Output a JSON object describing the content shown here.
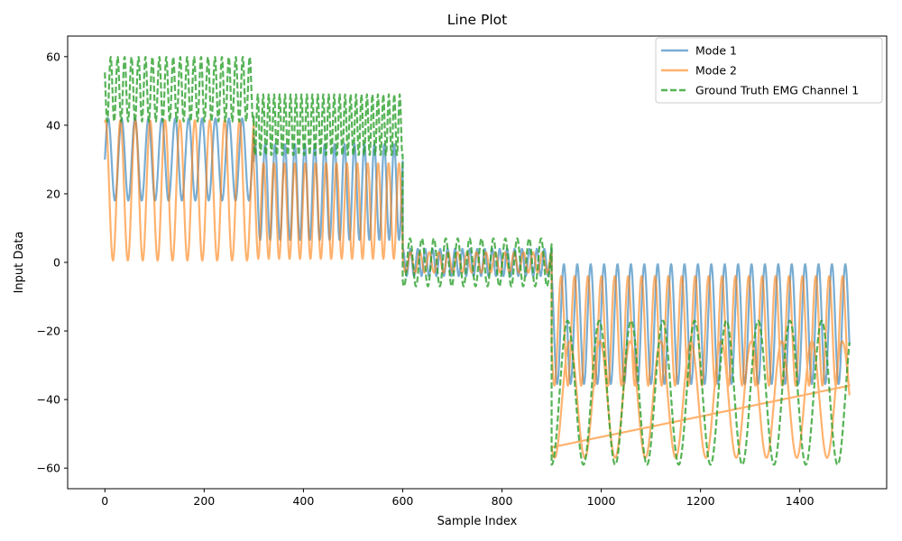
{
  "chart_data": {
    "type": "line",
    "title": "Line Plot",
    "xlabel": "Sample Index",
    "ylabel": "Input Data",
    "xlim": [
      -75,
      1575
    ],
    "ylim": [
      -66,
      66
    ],
    "xticks": [
      0,
      200,
      400,
      600,
      800,
      1000,
      1200,
      1400
    ],
    "yticks": [
      60,
      40,
      20,
      0,
      -20,
      -40,
      -60
    ],
    "ytick_labels": [
      "60",
      "40",
      "20",
      "0",
      "−20",
      "−40",
      "−60"
    ],
    "grid": false,
    "legend_position": "top-right",
    "series": [
      {
        "name": "Mode 1",
        "color": "#1f77b4",
        "style": "solid",
        "segments": [
          {
            "x_start": 0,
            "x_end": 300,
            "center": 30,
            "amp": 12,
            "period": 27
          },
          {
            "x_start": 300,
            "x_end": 600,
            "center": 20.5,
            "amp": 14,
            "period": 20
          },
          {
            "x_start": 600,
            "x_end": 900,
            "center": 0,
            "amp": 4,
            "period": 15
          },
          {
            "x_start": 900,
            "x_end": 1500,
            "center": -18,
            "amp": 17.5,
            "period": 27
          }
        ]
      },
      {
        "name": "Mode 2",
        "color": "#ff7f0e",
        "style": "solid",
        "segments": [
          {
            "x_start": 0,
            "x_end": 300,
            "center": 21,
            "amp": 20.5,
            "period": 30
          },
          {
            "x_start": 300,
            "x_end": 600,
            "center": 15,
            "amp": 14,
            "period": 21
          },
          {
            "x_start": 600,
            "x_end": 900,
            "center": 0,
            "amp": 3,
            "period": 19
          },
          {
            "x_start": 900,
            "x_end": 1500,
            "center": -20,
            "amp": 16,
            "period": 27
          },
          {
            "x_start": 900,
            "x_end": 1500,
            "center": -40,
            "amp": 17,
            "period": 61
          }
        ]
      },
      {
        "name": "Ground Truth EMG Channel 1",
        "color": "#2ca02c",
        "style": "dashed",
        "segments": [
          {
            "x_start": 0,
            "x_end": 300,
            "center": 50.5,
            "amp": 9.5,
            "period": 14
          },
          {
            "x_start": 300,
            "x_end": 600,
            "center": 40,
            "amp": 9,
            "period": 11
          },
          {
            "x_start": 600,
            "x_end": 900,
            "center": 0,
            "amp": 7,
            "period": 24
          },
          {
            "x_start": 900,
            "x_end": 1500,
            "center": -38,
            "amp": 21,
            "period": 64
          }
        ]
      }
    ]
  }
}
